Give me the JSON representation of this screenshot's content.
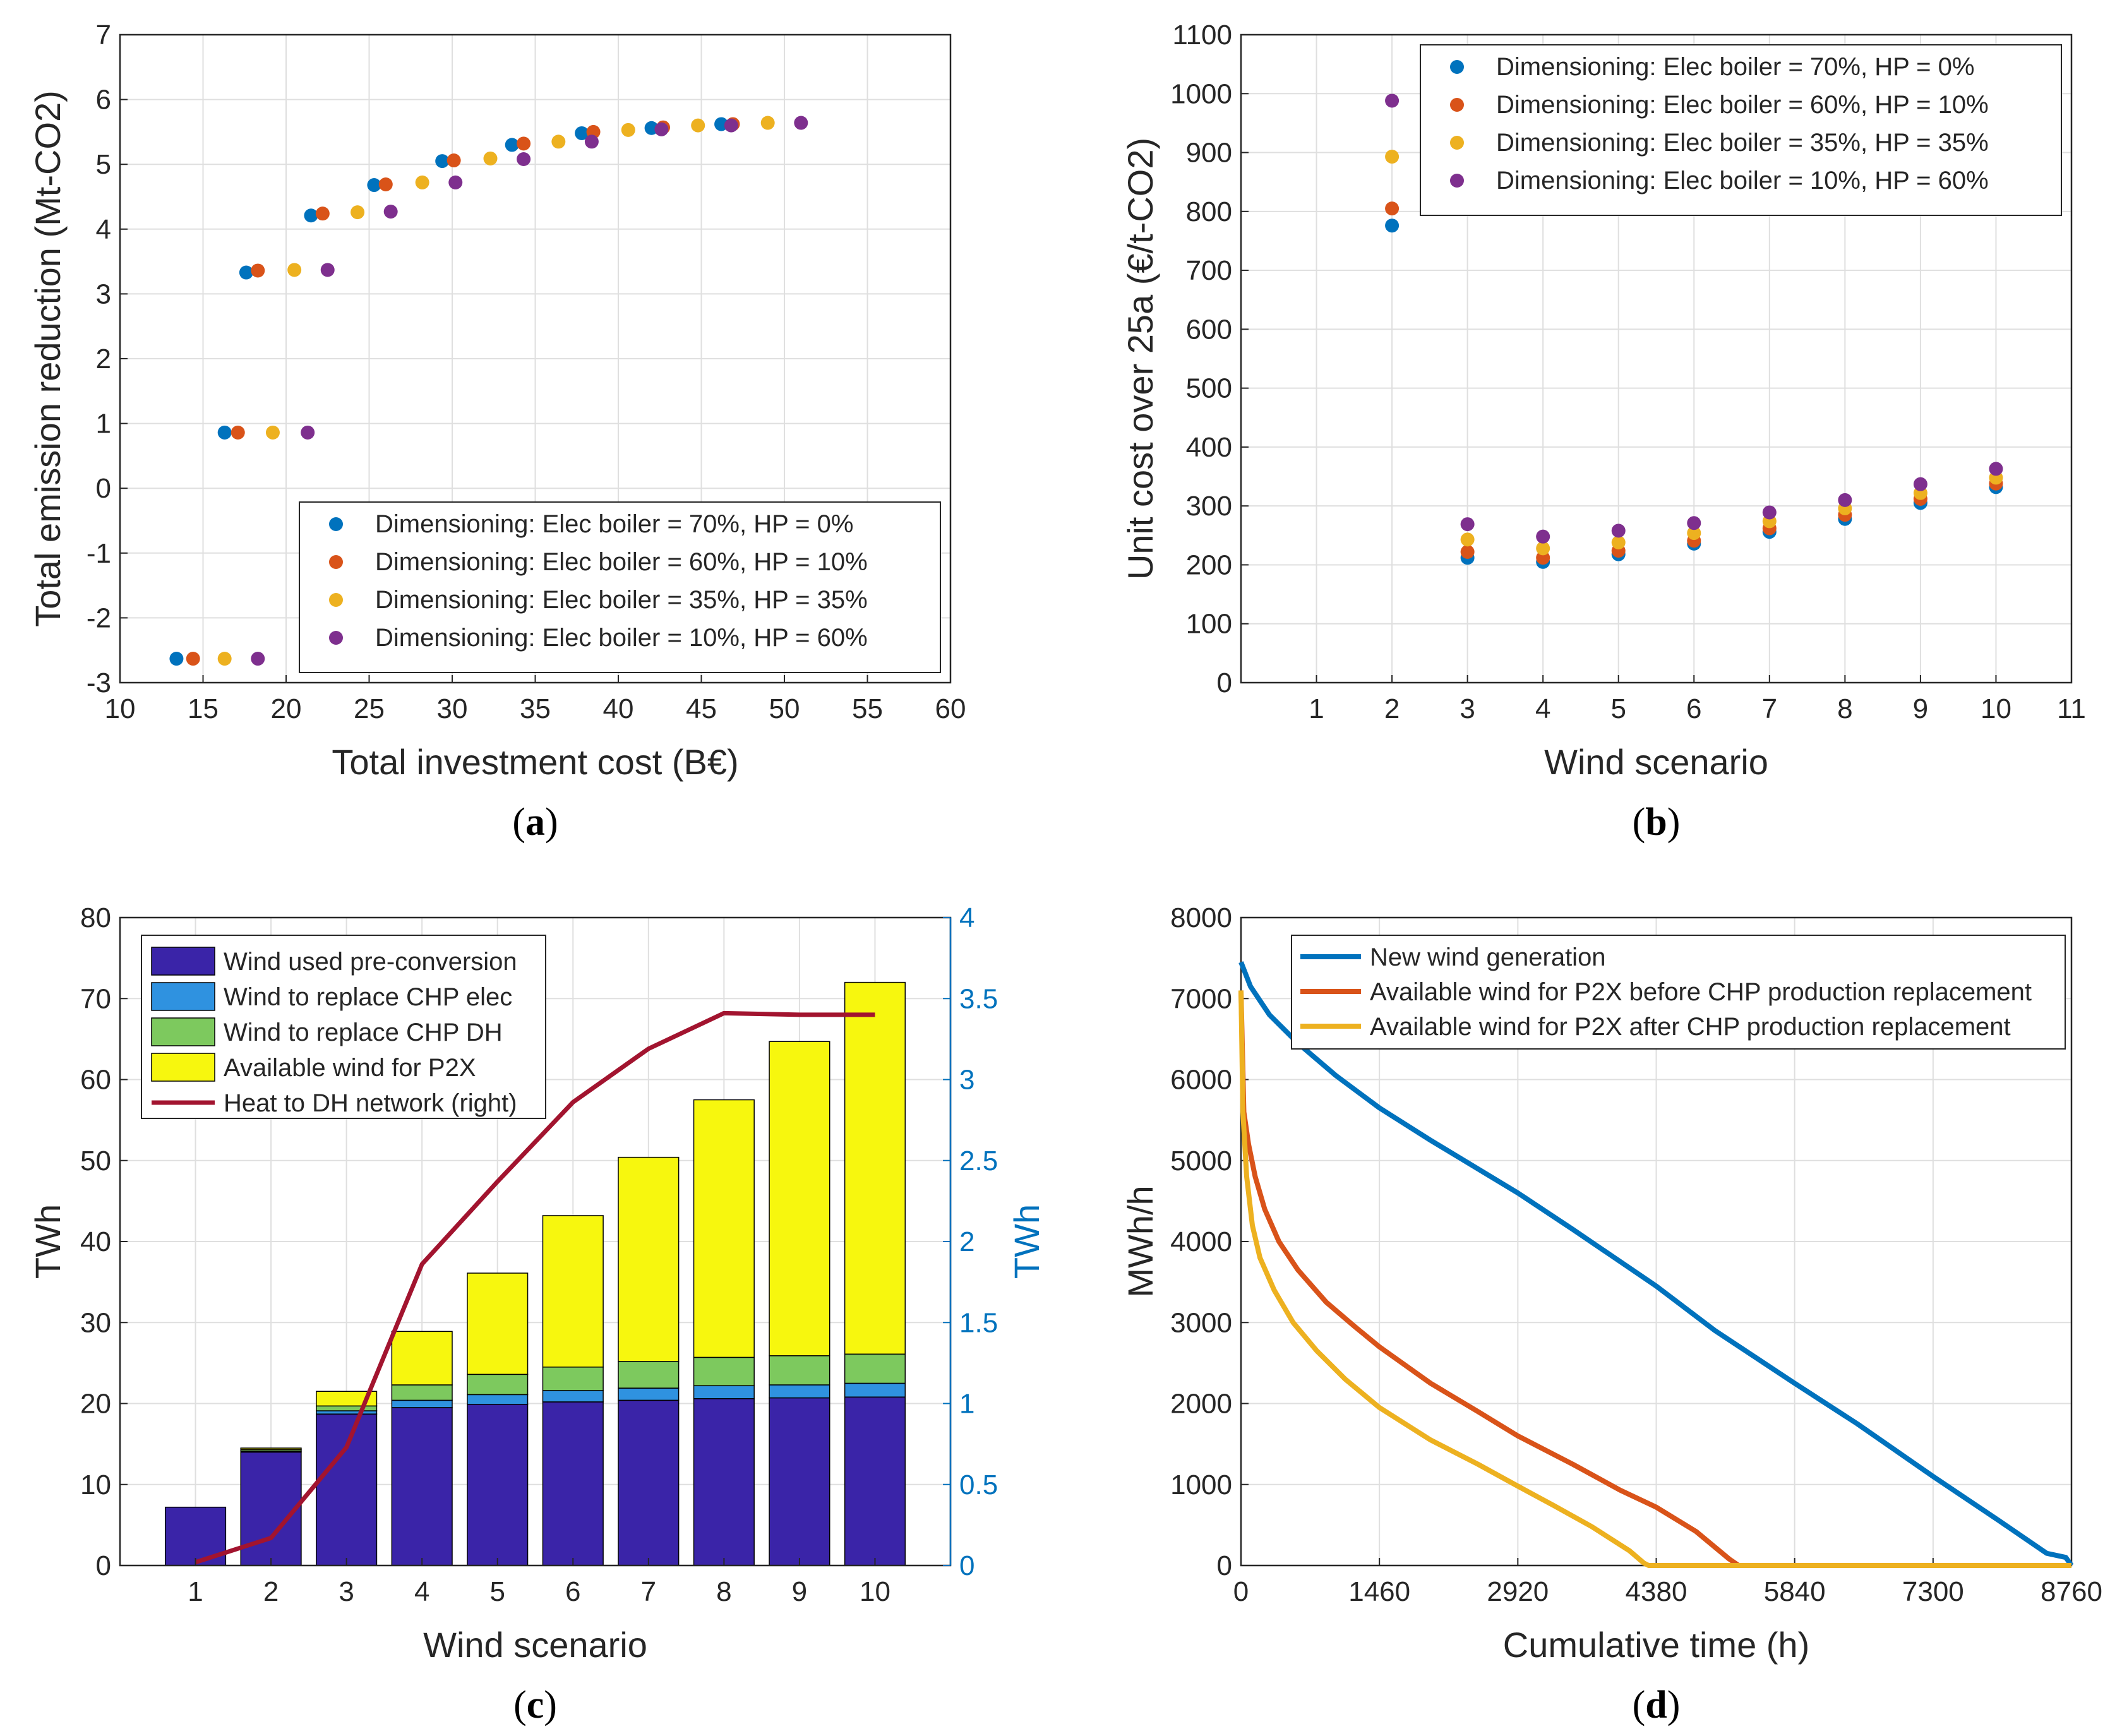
{
  "chart_data": [
    {
      "type": "scatter",
      "panel": "a",
      "caption_letter": "a",
      "xlabel": "Total investment cost (B€)",
      "ylabel": "Total emission reduction (Mt-CO2)",
      "xlim": [
        10,
        60
      ],
      "ylim": [
        -3,
        7
      ],
      "xticks": [
        10,
        15,
        20,
        25,
        30,
        35,
        40,
        45,
        50,
        55,
        60
      ],
      "yticks": [
        -3,
        -2,
        -1,
        0,
        1,
        2,
        3,
        4,
        5,
        6,
        7
      ],
      "grid": true,
      "legend_location": "bottom-right",
      "series": [
        {
          "name": "Dimensioning: Elec boiler = 70%, HP = 0%",
          "color": "#0072BD",
          "points": [
            [
              13.4,
              -2.63
            ],
            [
              16.3,
              0.86
            ],
            [
              17.6,
              3.33
            ],
            [
              21.5,
              4.21
            ],
            [
              25.3,
              4.68
            ],
            [
              29.4,
              5.05
            ],
            [
              33.6,
              5.3
            ],
            [
              37.8,
              5.48
            ],
            [
              42.0,
              5.56
            ],
            [
              46.2,
              5.62
            ]
          ]
        },
        {
          "name": "Dimensioning: Elec boiler = 60%, HP = 10%",
          "color": "#D95319",
          "points": [
            [
              14.4,
              -2.63
            ],
            [
              17.1,
              0.86
            ],
            [
              18.3,
              3.36
            ],
            [
              22.2,
              4.24
            ],
            [
              26.0,
              4.69
            ],
            [
              30.1,
              5.06
            ],
            [
              34.3,
              5.32
            ],
            [
              38.5,
              5.5
            ],
            [
              42.7,
              5.57
            ],
            [
              46.9,
              5.62
            ]
          ]
        },
        {
          "name": "Dimensioning: Elec boiler = 35%, HP = 35%",
          "color": "#EDB120",
          "points": [
            [
              16.3,
              -2.63
            ],
            [
              19.2,
              0.86
            ],
            [
              20.5,
              3.37
            ],
            [
              24.3,
              4.26
            ],
            [
              28.2,
              4.72
            ],
            [
              32.3,
              5.09
            ],
            [
              36.4,
              5.35
            ],
            [
              40.6,
              5.53
            ],
            [
              44.8,
              5.6
            ],
            [
              49.0,
              5.64
            ]
          ]
        },
        {
          "name": "Dimensioning: Elec boiler = 10%, HP = 60%",
          "color": "#7E2F8E",
          "points": [
            [
              18.3,
              -2.63
            ],
            [
              21.3,
              0.86
            ],
            [
              22.5,
              3.37
            ],
            [
              26.3,
              4.27
            ],
            [
              30.2,
              4.72
            ],
            [
              34.3,
              5.08
            ],
            [
              38.4,
              5.35
            ],
            [
              42.6,
              5.54
            ],
            [
              46.8,
              5.6
            ],
            [
              51.0,
              5.64
            ]
          ]
        }
      ]
    },
    {
      "type": "scatter",
      "panel": "b",
      "caption_letter": "b",
      "xlabel": "Wind scenario",
      "ylabel": "Unit cost over 25a (€/t-CO2)",
      "xlim": [
        0,
        11
      ],
      "ylim": [
        0,
        1100
      ],
      "xticks": [
        1,
        2,
        3,
        4,
        5,
        6,
        7,
        8,
        9,
        10,
        11
      ],
      "yticks": [
        0,
        100,
        200,
        300,
        400,
        500,
        600,
        700,
        800,
        900,
        1000,
        1100
      ],
      "grid": true,
      "legend_location": "top-right",
      "series": [
        {
          "name": "Dimensioning: Elec boiler = 70%, HP = 0%",
          "color": "#0072BD",
          "points": [
            [
              2,
              776
            ],
            [
              3,
              212
            ],
            [
              4,
              205
            ],
            [
              5,
              218
            ],
            [
              6,
              236
            ],
            [
              7,
              256
            ],
            [
              8,
              278
            ],
            [
              9,
              305
            ],
            [
              10,
              332
            ]
          ]
        },
        {
          "name": "Dimensioning: Elec boiler = 60%, HP = 10%",
          "color": "#D95319",
          "points": [
            [
              2,
              805
            ],
            [
              3,
              222
            ],
            [
              4,
              212
            ],
            [
              5,
              224
            ],
            [
              6,
              241
            ],
            [
              7,
              262
            ],
            [
              8,
              285
            ],
            [
              9,
              312
            ],
            [
              10,
              338
            ]
          ]
        },
        {
          "name": "Dimensioning: Elec boiler = 35%, HP = 35%",
          "color": "#EDB120",
          "points": [
            [
              2,
              893
            ],
            [
              3,
              243
            ],
            [
              4,
              228
            ],
            [
              5,
              238
            ],
            [
              6,
              254
            ],
            [
              7,
              274
            ],
            [
              8,
              296
            ],
            [
              9,
              322
            ],
            [
              10,
              348
            ]
          ]
        },
        {
          "name": "Dimensioning: Elec boiler = 10%, HP = 60%",
          "color": "#7E2F8E",
          "points": [
            [
              2,
              988
            ],
            [
              3,
              269
            ],
            [
              4,
              248
            ],
            [
              5,
              258
            ],
            [
              6,
              271
            ],
            [
              7,
              289
            ],
            [
              8,
              310
            ],
            [
              9,
              337
            ],
            [
              10,
              363
            ]
          ]
        }
      ]
    },
    {
      "type": "bar",
      "stacked": true,
      "panel": "c",
      "caption_letter": "c",
      "xlabel": "Wind scenario",
      "ylabel": "TWh",
      "ylabel_right": "TWh",
      "categories": [
        "1",
        "2",
        "3",
        "4",
        "5",
        "6",
        "7",
        "8",
        "9",
        "10"
      ],
      "ylim": [
        0,
        80
      ],
      "ylim_right": [
        0,
        4
      ],
      "yticks": [
        0,
        10,
        20,
        30,
        40,
        50,
        60,
        70,
        80
      ],
      "yticks_right": [
        "0",
        "0.5",
        "1",
        "1.5",
        "2",
        "2.5",
        "3",
        "3.5",
        "4"
      ],
      "grid": true,
      "legend_location": "top-left",
      "series": [
        {
          "name": "Wind used pre-conversion",
          "color": "#3A24A8",
          "values": [
            7.2,
            14.0,
            18.7,
            19.5,
            19.9,
            20.2,
            20.4,
            20.6,
            20.7,
            20.8
          ]
        },
        {
          "name": "Wind to replace CHP elec",
          "color": "#2F92E0",
          "values": [
            0,
            0.1,
            0.4,
            0.9,
            1.2,
            1.4,
            1.5,
            1.6,
            1.6,
            1.7
          ]
        },
        {
          "name": "Wind to replace CHP DH",
          "color": "#7DC95E",
          "values": [
            0,
            0.2,
            0.6,
            1.9,
            2.5,
            2.9,
            3.3,
            3.5,
            3.6,
            3.6
          ]
        },
        {
          "name": "Available wind for P2X",
          "color": "#F7F70E",
          "values": [
            0,
            0.2,
            1.8,
            6.6,
            12.5,
            18.7,
            25.2,
            31.8,
            38.8,
            45.9
          ]
        }
      ],
      "line_series": {
        "name": "Heat to DH network (right)",
        "color": "#A2142F",
        "axis": "right",
        "values": [
          0.02,
          0.17,
          0.73,
          1.86,
          2.37,
          2.86,
          3.19,
          3.41,
          3.4,
          3.4
        ]
      }
    },
    {
      "type": "line",
      "panel": "d",
      "caption_letter": "d",
      "xlabel": "Cumulative time (h)",
      "ylabel": "MWh/h",
      "xlim": [
        0,
        8760
      ],
      "ylim": [
        0,
        8000
      ],
      "xticks": [
        0,
        1460,
        2920,
        4380,
        5840,
        7300,
        8760
      ],
      "yticks": [
        0,
        1000,
        2000,
        3000,
        4000,
        5000,
        6000,
        7000,
        8000
      ],
      "grid": true,
      "legend_location": "top-right",
      "series": [
        {
          "name": "New wind generation",
          "color": "#0072BD",
          "x": [
            0,
            100,
            300,
            600,
            1000,
            1460,
            2000,
            2920,
            3500,
            4380,
            5000,
            5840,
            6500,
            7300,
            8000,
            8500,
            8700,
            8760
          ],
          "y": [
            7450,
            7150,
            6800,
            6450,
            6050,
            5650,
            5250,
            4600,
            4150,
            3450,
            2900,
            2250,
            1750,
            1100,
            550,
            150,
            100,
            0
          ]
        },
        {
          "name": "Available wind for P2X before CHP production replacement",
          "color": "#D95319",
          "x": [
            0,
            30,
            80,
            150,
            250,
            400,
            600,
            900,
            1200,
            1460,
            2000,
            2500,
            2920,
            3500,
            4000,
            4380,
            4800,
            5150,
            5250,
            8760
          ],
          "y": [
            7100,
            5600,
            5200,
            4800,
            4400,
            4000,
            3650,
            3250,
            2950,
            2700,
            2250,
            1900,
            1600,
            1250,
            930,
            720,
            420,
            80,
            0,
            0
          ]
        },
        {
          "name": "Available wind for P2X after CHP production replacement",
          "color": "#EDB120",
          "x": [
            0,
            20,
            60,
            120,
            200,
            350,
            550,
            800,
            1100,
            1460,
            2000,
            2500,
            2920,
            3300,
            3700,
            4100,
            4250,
            4300,
            8760
          ],
          "y": [
            7100,
            5600,
            4800,
            4200,
            3800,
            3400,
            3000,
            2650,
            2300,
            1950,
            1550,
            1250,
            980,
            740,
            480,
            180,
            30,
            0,
            0
          ]
        }
      ]
    }
  ]
}
